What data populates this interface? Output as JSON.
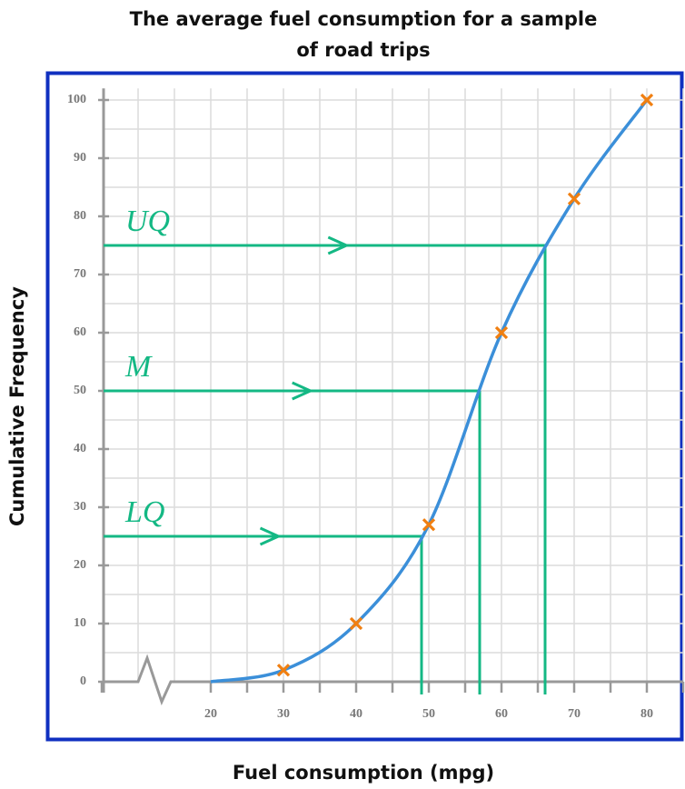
{
  "chart_data": {
    "type": "cumulative-frequency",
    "title_lines": [
      "The average fuel consumption for a sample",
      "of road trips"
    ],
    "x_label": "Fuel consumption (mpg)",
    "y_label": "Cumulative Frequency",
    "xlim": [
      5,
      85
    ],
    "ylim": [
      0,
      102
    ],
    "xticks": [
      20,
      30,
      40,
      50,
      60,
      70,
      80
    ],
    "yticks": [
      0,
      10,
      20,
      30,
      40,
      50,
      60,
      70,
      80,
      90,
      100
    ],
    "grid": true,
    "curve": {
      "color": "#3b8fd9",
      "x": [
        20,
        30,
        40,
        50,
        60,
        70,
        80
      ],
      "values": [
        0,
        2,
        10,
        27,
        60,
        83,
        100
      ]
    },
    "points": {
      "color": "#f07f11",
      "x": [
        30,
        40,
        50,
        60,
        70,
        80
      ],
      "values": [
        2,
        10,
        27,
        60,
        83,
        100
      ]
    },
    "quartiles": {
      "color": "#14b884",
      "items": [
        {
          "label": "LQ",
          "y": 25,
          "x": 49
        },
        {
          "label": "M",
          "y": 50,
          "x": 57
        },
        {
          "label": "UQ",
          "y": 75,
          "x": 66
        }
      ]
    }
  }
}
